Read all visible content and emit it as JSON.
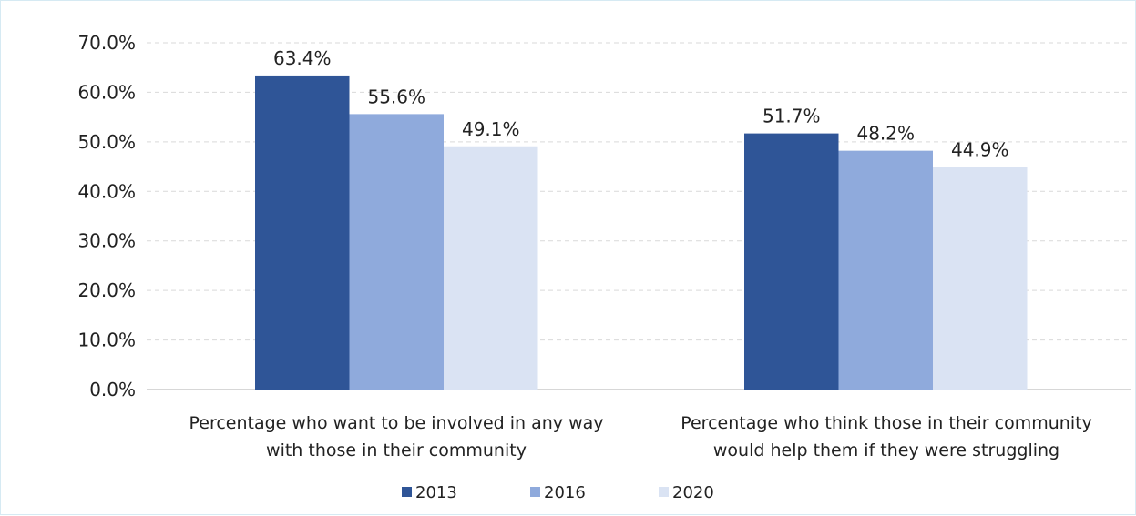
{
  "chart_data": {
    "type": "bar",
    "categories": [
      [
        "Percentage who want to be involved in any way",
        "with those in their community"
      ],
      [
        "Percentage who think those in their community",
        "would help them if they were struggling"
      ]
    ],
    "series": [
      {
        "name": "2013",
        "values": [
          63.4,
          51.7
        ],
        "labels": [
          "63.4%",
          "51.7%"
        ],
        "color": "#2f5597"
      },
      {
        "name": "2016",
        "values": [
          55.6,
          48.2
        ],
        "labels": [
          "55.6%",
          "48.2%"
        ],
        "color": "#8faadc"
      },
      {
        "name": "2020",
        "values": [
          49.1,
          44.9
        ],
        "labels": [
          "49.1%",
          "44.9%"
        ],
        "color": "#dae3f3"
      }
    ],
    "yticks": [
      "0.0%",
      "10.0%",
      "20.0%",
      "30.0%",
      "40.0%",
      "50.0%",
      "60.0%",
      "70.0%"
    ],
    "ylim": [
      0,
      70
    ],
    "grid": true,
    "legend_position": "bottom"
  }
}
